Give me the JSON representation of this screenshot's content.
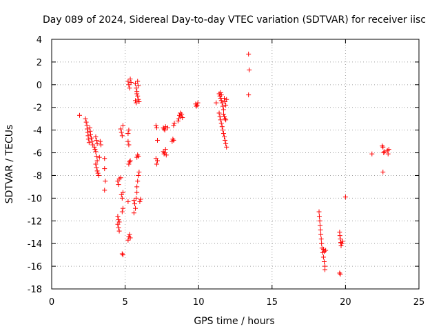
{
  "chart_data": {
    "type": "scatter",
    "title": "Day 089 of 2024, Sidereal Day-to-day VTEC variation (SDTVAR) for receiver iisc",
    "xlabel": "GPS time / hours",
    "ylabel": "SDTVAR / TECUs",
    "xlim": [
      0,
      25
    ],
    "ylim": [
      -18,
      4
    ],
    "xticks": [
      0,
      5,
      10,
      15,
      20,
      25
    ],
    "yticks": [
      -18,
      -16,
      -14,
      -12,
      -10,
      -8,
      -6,
      -4,
      -2,
      0,
      2,
      4
    ],
    "grid": true,
    "marker": "+",
    "color": "#ff0000",
    "series": [
      {
        "name": "SDTVAR",
        "points": [
          [
            1.9,
            -2.7
          ],
          [
            2.3,
            -3.0
          ],
          [
            2.35,
            -3.3
          ],
          [
            2.4,
            -3.6
          ],
          [
            2.42,
            -3.9
          ],
          [
            2.45,
            -4.2
          ],
          [
            2.48,
            -4.5
          ],
          [
            2.5,
            -4.8
          ],
          [
            2.55,
            -5.1
          ],
          [
            2.6,
            -3.8
          ],
          [
            2.62,
            -4.1
          ],
          [
            2.65,
            -4.4
          ],
          [
            2.7,
            -4.7
          ],
          [
            2.75,
            -5.0
          ],
          [
            2.8,
            -5.3
          ],
          [
            2.9,
            -5.5
          ],
          [
            2.95,
            -5.7
          ],
          [
            3.0,
            -4.6
          ],
          [
            3.05,
            -4.9
          ],
          [
            3.1,
            -5.2
          ],
          [
            3.0,
            -5.9
          ],
          [
            3.05,
            -6.3
          ],
          [
            3.1,
            -6.7
          ],
          [
            3.0,
            -7.0
          ],
          [
            3.05,
            -7.3
          ],
          [
            3.1,
            -7.6
          ],
          [
            3.15,
            -7.8
          ],
          [
            3.2,
            -8.0
          ],
          [
            3.25,
            -6.4
          ],
          [
            3.3,
            -5.0
          ],
          [
            3.35,
            -5.3
          ],
          [
            3.6,
            -6.5
          ],
          [
            3.6,
            -7.4
          ],
          [
            3.65,
            -8.5
          ],
          [
            3.6,
            -9.3
          ],
          [
            4.5,
            -8.5
          ],
          [
            4.55,
            -8.8
          ],
          [
            4.6,
            -8.3
          ],
          [
            4.7,
            -8.2
          ],
          [
            4.75,
            -9.7
          ],
          [
            4.8,
            -10.0
          ],
          [
            4.85,
            -9.5
          ],
          [
            4.8,
            -11.2
          ],
          [
            4.85,
            -10.9
          ],
          [
            4.5,
            -11.6
          ],
          [
            4.55,
            -11.9
          ],
          [
            4.5,
            -12.3
          ],
          [
            4.55,
            -12.6
          ],
          [
            4.6,
            -12.9
          ],
          [
            4.6,
            -12.1
          ],
          [
            4.7,
            -3.9
          ],
          [
            4.75,
            -4.2
          ],
          [
            4.8,
            -4.5
          ],
          [
            4.85,
            -3.6
          ],
          [
            4.8,
            -14.9
          ],
          [
            4.85,
            -15.0
          ],
          [
            5.2,
            -10.3
          ],
          [
            5.25,
            -7.0
          ],
          [
            5.3,
            -6.8
          ],
          [
            5.35,
            -6.7
          ],
          [
            5.2,
            -13.7
          ],
          [
            5.25,
            -13.4
          ],
          [
            5.3,
            -13.2
          ],
          [
            5.35,
            -13.5
          ],
          [
            5.2,
            -5.0
          ],
          [
            5.25,
            -5.3
          ],
          [
            5.2,
            -4.3
          ],
          [
            5.25,
            -4.0
          ],
          [
            5.2,
            0.3
          ],
          [
            5.25,
            0.0
          ],
          [
            5.3,
            -0.3
          ],
          [
            5.35,
            0.5
          ],
          [
            5.4,
            0.2
          ],
          [
            5.6,
            -10.2
          ],
          [
            5.65,
            -10.5
          ],
          [
            5.7,
            -10.9
          ],
          [
            5.6,
            -11.3
          ],
          [
            5.75,
            -10.0
          ],
          [
            5.8,
            -9.5
          ],
          [
            5.8,
            -9.0
          ],
          [
            5.85,
            -8.5
          ],
          [
            5.9,
            -8.0
          ],
          [
            5.95,
            -7.7
          ],
          [
            5.8,
            -6.4
          ],
          [
            5.85,
            -6.2
          ],
          [
            5.9,
            -6.3
          ],
          [
            5.7,
            0.1
          ],
          [
            5.75,
            -0.3
          ],
          [
            5.8,
            -0.6
          ],
          [
            5.85,
            -1.0
          ],
          [
            5.9,
            -1.3
          ],
          [
            5.95,
            -1.5
          ],
          [
            5.7,
            -1.4
          ],
          [
            5.75,
            -1.6
          ],
          [
            5.8,
            -0.8
          ],
          [
            5.85,
            0.3
          ],
          [
            5.9,
            -0.1
          ],
          [
            6.0,
            -10.3
          ],
          [
            6.05,
            -10.1
          ],
          [
            7.1,
            -3.6
          ],
          [
            7.15,
            -3.8
          ],
          [
            7.2,
            -4.9
          ],
          [
            7.1,
            -6.5
          ],
          [
            7.15,
            -7.0
          ],
          [
            7.2,
            -6.7
          ],
          [
            7.6,
            -3.8
          ],
          [
            7.65,
            -3.9
          ],
          [
            7.7,
            -4.0
          ],
          [
            7.75,
            -3.7
          ],
          [
            7.6,
            -5.9
          ],
          [
            7.65,
            -6.1
          ],
          [
            7.7,
            -6.0
          ],
          [
            7.75,
            -5.7
          ],
          [
            7.8,
            -6.2
          ],
          [
            7.9,
            -3.8
          ],
          [
            8.2,
            -5.0
          ],
          [
            8.25,
            -4.8
          ],
          [
            8.3,
            -4.9
          ],
          [
            8.3,
            -3.6
          ],
          [
            8.35,
            -3.4
          ],
          [
            8.6,
            -3.2
          ],
          [
            8.65,
            -3.0
          ],
          [
            8.7,
            -2.7
          ],
          [
            8.75,
            -2.5
          ],
          [
            8.8,
            -2.8
          ],
          [
            8.85,
            -2.6
          ],
          [
            8.9,
            -2.9
          ],
          [
            9.8,
            -1.7
          ],
          [
            9.85,
            -1.9
          ],
          [
            9.9,
            -1.8
          ],
          [
            9.95,
            -1.6
          ],
          [
            11.2,
            -1.6
          ],
          [
            11.4,
            -0.8
          ],
          [
            11.45,
            -1.0
          ],
          [
            11.5,
            -1.2
          ],
          [
            11.55,
            -1.4
          ],
          [
            11.6,
            -1.6
          ],
          [
            11.65,
            -1.9
          ],
          [
            11.7,
            -2.2
          ],
          [
            11.4,
            -2.5
          ],
          [
            11.45,
            -2.8
          ],
          [
            11.5,
            -3.1
          ],
          [
            11.55,
            -3.4
          ],
          [
            11.6,
            -3.7
          ],
          [
            11.65,
            -4.0
          ],
          [
            11.7,
            -4.3
          ],
          [
            11.75,
            -4.6
          ],
          [
            11.8,
            -4.9
          ],
          [
            11.85,
            -5.2
          ],
          [
            11.9,
            -5.5
          ],
          [
            11.7,
            -2.6
          ],
          [
            11.75,
            -2.8
          ],
          [
            11.8,
            -3.0
          ],
          [
            11.85,
            -3.1
          ],
          [
            11.75,
            -1.2
          ],
          [
            11.8,
            -1.5
          ],
          [
            11.85,
            -1.8
          ],
          [
            11.9,
            -1.3
          ],
          [
            11.5,
            -0.7
          ],
          [
            11.55,
            -0.9
          ],
          [
            13.4,
            2.7
          ],
          [
            13.45,
            1.3
          ],
          [
            13.4,
            -0.9
          ],
          [
            18.2,
            -11.2
          ],
          [
            18.22,
            -11.6
          ],
          [
            18.25,
            -12.0
          ],
          [
            18.27,
            -12.4
          ],
          [
            18.3,
            -12.8
          ],
          [
            18.32,
            -13.2
          ],
          [
            18.35,
            -13.6
          ],
          [
            18.37,
            -14.0
          ],
          [
            18.4,
            -14.4
          ],
          [
            18.45,
            -14.8
          ],
          [
            18.5,
            -15.2
          ],
          [
            18.55,
            -15.6
          ],
          [
            18.6,
            -16.0
          ],
          [
            18.6,
            -16.3
          ],
          [
            18.5,
            -14.5
          ],
          [
            18.55,
            -14.7
          ],
          [
            18.65,
            -14.6
          ],
          [
            19.6,
            -13.0
          ],
          [
            19.62,
            -13.3
          ],
          [
            19.65,
            -13.6
          ],
          [
            19.68,
            -13.9
          ],
          [
            19.7,
            -14.2
          ],
          [
            19.8,
            -13.8
          ],
          [
            19.75,
            -14.0
          ],
          [
            19.6,
            -16.6
          ],
          [
            19.65,
            -16.7
          ],
          [
            20.0,
            -9.9
          ],
          [
            21.8,
            -6.1
          ],
          [
            22.5,
            -5.4
          ],
          [
            22.55,
            -5.5
          ],
          [
            22.6,
            -6.0
          ],
          [
            22.65,
            -5.9
          ],
          [
            22.55,
            -7.7
          ],
          [
            22.85,
            -5.8
          ],
          [
            22.9,
            -6.1
          ],
          [
            22.95,
            -5.7
          ]
        ]
      }
    ]
  }
}
